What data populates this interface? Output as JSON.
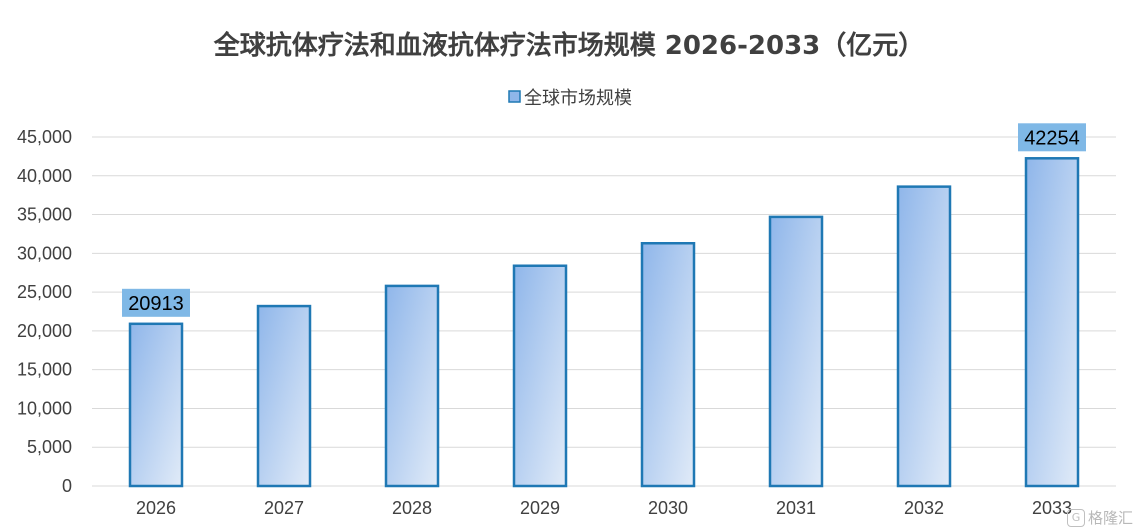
{
  "chart_data": {
    "type": "bar",
    "title": "全球抗体疗法和血液抗体疗法市场规模 2026-2033（亿元）",
    "legend_position": "top",
    "grid": true,
    "categories": [
      "2026",
      "2027",
      "2028",
      "2029",
      "2030",
      "2031",
      "2032",
      "2033"
    ],
    "series": [
      {
        "name": "全球市场规模",
        "values": [
          20913,
          23200,
          25800,
          28400,
          31300,
          34700,
          38600,
          42254
        ],
        "data_labels": [
          "20913",
          "",
          "",
          "",
          "",
          "",
          "",
          "42254"
        ]
      }
    ],
    "ylim": [
      0,
      45000
    ],
    "yticks": [
      0,
      5000,
      10000,
      15000,
      20000,
      25000,
      30000,
      35000,
      40000,
      45000
    ],
    "ytick_labels": [
      "0",
      "5,000",
      "10,000",
      "15,000",
      "20,000",
      "25,000",
      "30,000",
      "35,000",
      "40,000",
      "45,000"
    ],
    "colors": {
      "bar_top": "#8fb6ea",
      "bar_bottom": "#e1ebf8",
      "bar_border": "#1f78b4",
      "label_bg": "#7fb8e6",
      "grid": "#d9d9d9"
    }
  },
  "watermark": {
    "icon": "gelonghui-logo-icon",
    "text": "格隆汇"
  }
}
